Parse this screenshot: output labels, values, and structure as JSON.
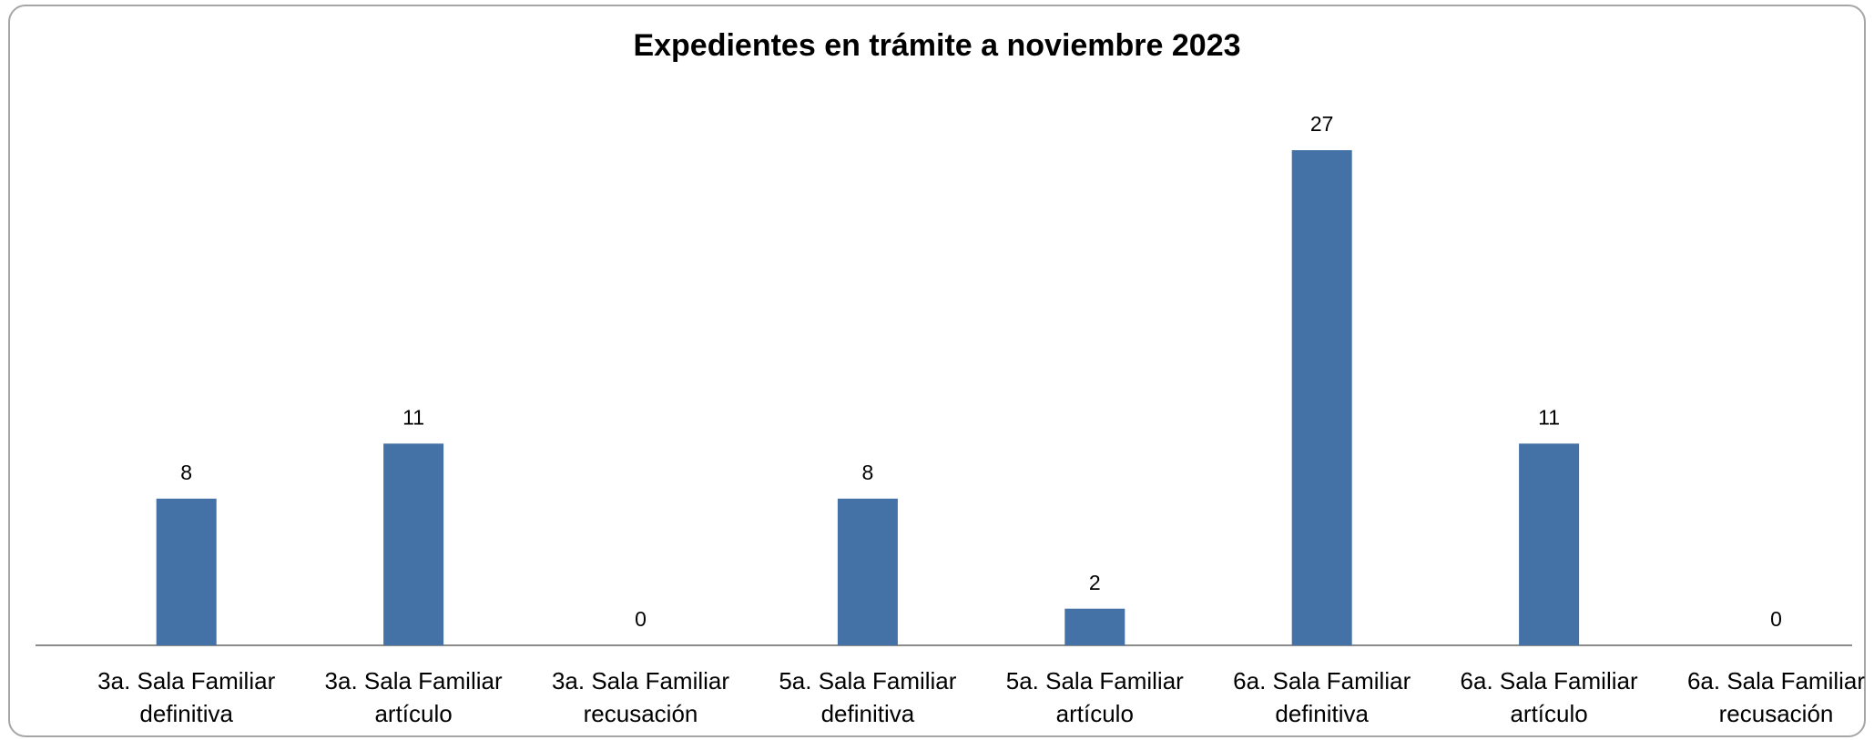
{
  "chart_data": {
    "type": "bar",
    "title": "Expedientes en trámite a noviembre 2023",
    "categories": [
      "3a. Sala Familiar definitiva",
      "3a. Sala Familiar artículo",
      "3a. Sala Familiar recusación",
      "5a. Sala Familiar definitiva",
      "5a. Sala Familiar artículo",
      "6a. Sala Familiar definitiva",
      "6a. Sala Familiar artículo",
      "6a. Sala Familiar recusación"
    ],
    "values": [
      8,
      11,
      0,
      8,
      2,
      27,
      11,
      0
    ],
    "color": "#4472a6"
  }
}
